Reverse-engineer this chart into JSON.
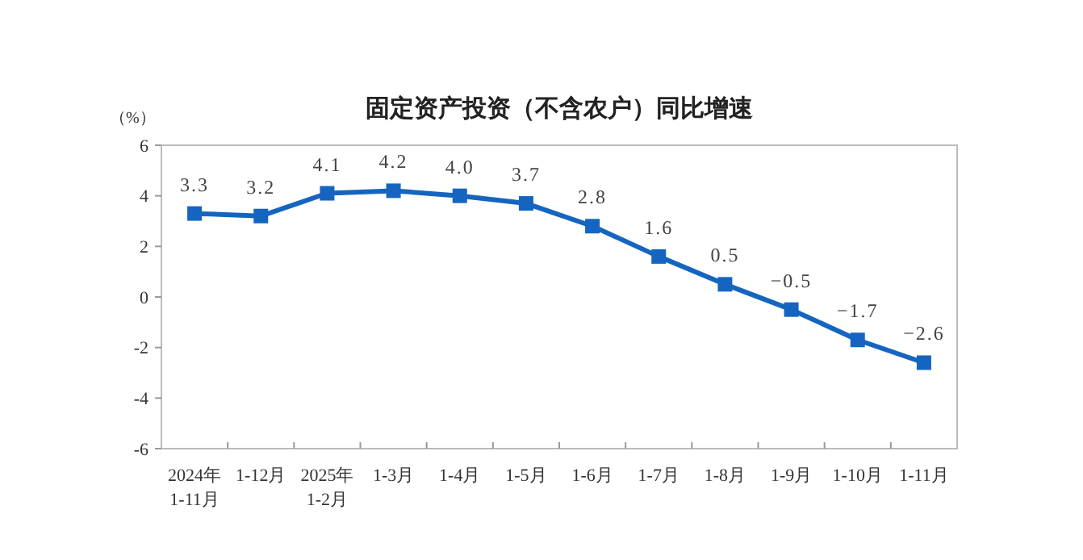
{
  "chart_data": {
    "type": "line",
    "title": "固定资产投资（不含农户）同比增速",
    "ylabel": "（%）",
    "categories": [
      "2024年\n1-11月",
      "1-12月",
      "2025年\n1-2月",
      "1-3月",
      "1-4月",
      "1-5月",
      "1-6月",
      "1-7月",
      "1-8月",
      "1-9月",
      "1-10月",
      "1-11月"
    ],
    "series": [
      {
        "color": "#1565c0",
        "values": [
          3.3,
          3.2,
          4.1,
          4.2,
          4.0,
          3.7,
          2.8,
          1.6,
          0.5,
          -0.5,
          -1.7,
          -2.6
        ],
        "value_labels": [
          "3.3",
          "3.2",
          "4.1",
          "4.2",
          "4.0",
          "3.7",
          "2.8",
          "1.6",
          "0.5",
          "−0.5",
          "−1.7",
          "−2.6"
        ]
      }
    ],
    "ylim": [
      -6,
      6
    ],
    "yticks": [
      -6,
      -4,
      -2,
      0,
      2,
      4,
      6
    ],
    "marker": "square",
    "line_style": "solid"
  }
}
